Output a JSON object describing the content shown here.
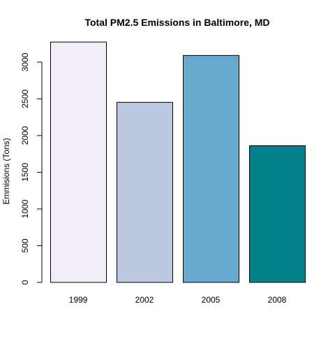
{
  "chart_data": {
    "type": "bar",
    "title": "Total PM2.5 Emissions in Baltimore, MD",
    "xlabel": "",
    "ylabel": "Emmisions (Tons)",
    "categories": [
      "1999",
      "2002",
      "2005",
      "2008"
    ],
    "values": [
      3274,
      2453,
      3091,
      1862
    ],
    "colors": [
      "#F1EEF6",
      "#BDC9E1",
      "#67A9CF",
      "#02818A"
    ],
    "ylim": [
      0,
      3300
    ],
    "yticks": [
      0,
      500,
      1000,
      1500,
      2000,
      2500,
      3000
    ],
    "grid": false,
    "legend": "none"
  }
}
